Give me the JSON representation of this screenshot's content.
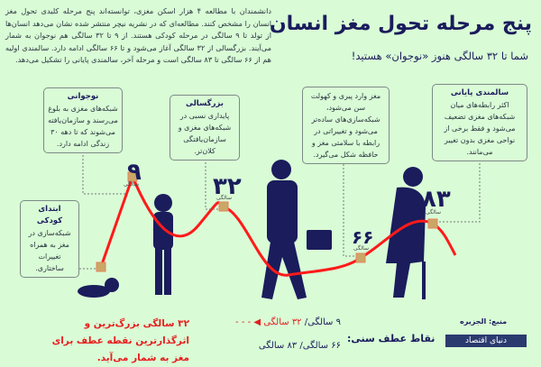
{
  "title": "پنج مرحله تحول مغز انسان",
  "subtitle": "شما تا ۳۲ سالگی هنوز «نوجوان» هستید!",
  "intro": "دانشمندان با مطالعه ۴ هزار اسکن مغزی، توانسته‌اند پنج مرحله کلیدی تحول مغز انسان را مشخص کنند. مطالعه‌ای که در نشریه نیچر منتشر شده نشان می‌دهد انسان‌ها از تولد تا ۹ سالگی در مرحله کودکی هستند. از ۹ تا ۳۲ سالگی هم نوجوان به شمار می‌آیند. بزرگسالی از ۳۲ سالگی آغاز می‌شود و تا ۶۶ سالگی ادامه دارد. سالمندی اولیه هم از ۶۶ سالگی تا ۸۳ سالگی است و مرحله آخر، سالمندی پایانی را تشکیل می‌دهد.",
  "stages": [
    {
      "title": "ابتدای کودکی",
      "text": "شبکه‌سازی در مغز به همراه تغییرات ساختاری."
    },
    {
      "title": "نوجوانی",
      "text": "شبکه‌های مغزی به بلوغ می‌رسند و سازمان‌یافته می‌شوند که تا دهه ۳۰ زندگی ادامه دارد."
    },
    {
      "title": "بزرگسالی",
      "text": "پایداری نسبی در شبکه‌های مغزی و سازمان‌یافتگی کلان‌تر."
    },
    {
      "title": "",
      "text": "مغز وارد پیری و کهولت سن می‌شود، شبکه‌سازی‌های ساده‌تر می‌شود و تغییراتی در رابطه با سلامتی مغز و حافظه شکل می‌گیرد."
    },
    {
      "title": "سالمندی پایانی",
      "text": "اکثر رابطه‌های میان شبکه‌های مغزی تضعیف می‌شود و فقط برخی از نواحی مغزی بدون تغییر می‌مانند."
    }
  ],
  "turning_points": [
    {
      "age": "۹",
      "label": "سالگی"
    },
    {
      "age": "۳۲",
      "label": "سالگی"
    },
    {
      "age": "۶۶",
      "label": "سالگی"
    },
    {
      "age": "۸۳",
      "label": "سالگی"
    }
  ],
  "footer": {
    "label": "نقاط عطف سنی:",
    "line1_a": "۹ سالگی/ ",
    "line1_b": "۳۲ سالگی",
    "line2": "۶۶ سالگی/ ۸۳ سالگی",
    "note": "۳۲ سالگی بزرگ‌ترین و اثرگذارترین نقطه عطف برای مغز به شمار می‌آید.",
    "source": "منبع: الجزیره",
    "logo": "دنیای اقتصاد"
  },
  "colors": {
    "background": "#d9fcd6",
    "navy": "#1a1c5c",
    "curve": "#ff1a1a",
    "marker": "#c9a865"
  }
}
